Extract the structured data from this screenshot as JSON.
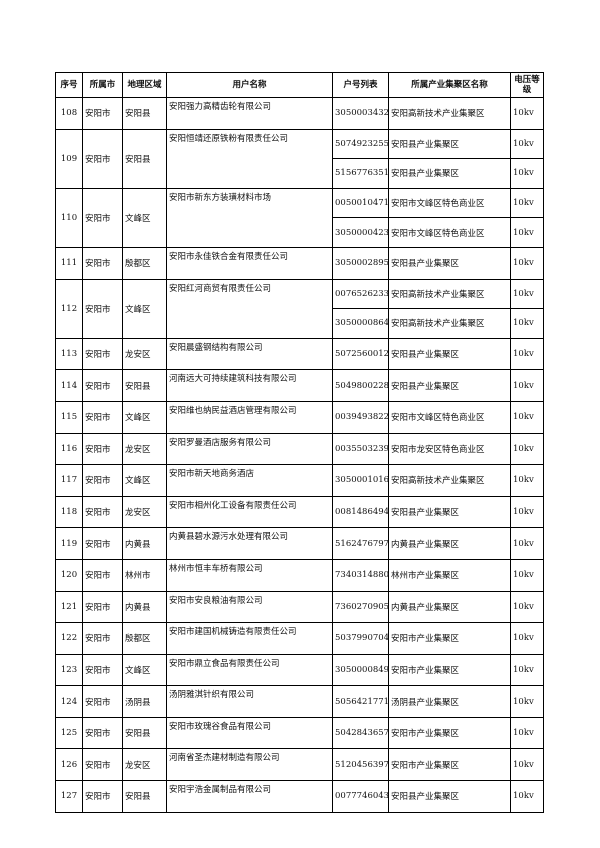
{
  "table": {
    "header": [
      "序号",
      "所属市",
      "地理区域",
      "用户名称",
      "户号列表",
      "所属产业集聚区名称",
      "电压等级"
    ],
    "rows": [
      {
        "id": "108",
        "city": "安阳市",
        "area": "安阳县",
        "user": "安阳强力高精齿轮有限公司",
        "accounts": [
          [
            "3050003432",
            "安阳高新技术产业集聚区",
            "10kv"
          ]
        ]
      },
      {
        "id": "109",
        "city": "安阳市",
        "area": "安阳县",
        "user": "安阳恒靖还原铁粉有限责任公司",
        "accounts": [
          [
            "5074923255",
            "安阳县产业集聚区",
            "10kv"
          ],
          [
            "5156776351",
            "安阳县产业集聚区",
            "10kv"
          ]
        ]
      },
      {
        "id": "110",
        "city": "安阳市",
        "area": "文峰区",
        "user": "安阳市新东方装璜材料市场",
        "accounts": [
          [
            "0050010471",
            "安阳市文峰区特色商业区",
            "10kv"
          ],
          [
            "3050000423",
            "安阳市文峰区特色商业区",
            "10kv"
          ]
        ]
      },
      {
        "id": "111",
        "city": "安阳市",
        "area": "殷都区",
        "user": "安阳市永佳铁合金有限责任公司",
        "accounts": [
          [
            "3050002895",
            "安阳县产业集聚区",
            "10kv"
          ]
        ]
      },
      {
        "id": "112",
        "city": "安阳市",
        "area": "文峰区",
        "user": "安阳红河商贸有限责任公司",
        "accounts": [
          [
            "0076526233",
            "安阳高新技术产业集聚区",
            "10kv"
          ],
          [
            "3050000864",
            "安阳高新技术产业集聚区",
            "10kv"
          ]
        ]
      },
      {
        "id": "113",
        "city": "安阳市",
        "area": "龙安区",
        "user": "安阳晨盛钢结构有限公司",
        "accounts": [
          [
            "5072560012",
            "安阳县产业集聚区",
            "10kv"
          ]
        ]
      },
      {
        "id": "114",
        "city": "安阳市",
        "area": "安阳县",
        "user": "河南远大可持续建筑科技有限公司",
        "accounts": [
          [
            "5049800228",
            "安阳县产业集聚区",
            "10kv"
          ]
        ]
      },
      {
        "id": "115",
        "city": "安阳市",
        "area": "文峰区",
        "user": "安阳维也纳民益酒店管理有限公司",
        "accounts": [
          [
            "0039493822",
            "安阳市文峰区特色商业区",
            "10kv"
          ]
        ]
      },
      {
        "id": "116",
        "city": "安阳市",
        "area": "龙安区",
        "user": "安阳罗曼酒店服务有限公司",
        "accounts": [
          [
            "0035503239",
            "安阳市龙安区特色商业区",
            "10kv"
          ]
        ]
      },
      {
        "id": "117",
        "city": "安阳市",
        "area": "文峰区",
        "user": "安阳市新天地商务酒店",
        "accounts": [
          [
            "3050001016",
            "安阳高新技术产业集聚区",
            "10kv"
          ]
        ]
      },
      {
        "id": "118",
        "city": "安阳市",
        "area": "龙安区",
        "user": "安阳市相州化工设备有限责任公司",
        "accounts": [
          [
            "0081486494",
            "安阳县产业集聚区",
            "10kv"
          ]
        ]
      },
      {
        "id": "119",
        "city": "安阳市",
        "area": "内黄县",
        "user": "内黄县碧水源污水处理有限公司",
        "accounts": [
          [
            "5162476797",
            "内黄县产业集聚区",
            "10kv"
          ]
        ]
      },
      {
        "id": "120",
        "city": "安阳市",
        "area": "林州市",
        "user": "林州市恒丰车桥有限公司",
        "accounts": [
          [
            "7340314880",
            "林州市产业集聚区",
            "10kv"
          ]
        ]
      },
      {
        "id": "121",
        "city": "安阳市",
        "area": "内黄县",
        "user": "安阳市安良粮油有限公司",
        "accounts": [
          [
            "7360270905",
            "内黄县产业集聚区",
            "10kv"
          ]
        ]
      },
      {
        "id": "122",
        "city": "安阳市",
        "area": "殷都区",
        "user": "安阳市建国机械铸造有限责任公司",
        "accounts": [
          [
            "5037990704",
            "安阳市产业集聚区",
            "10kv"
          ]
        ]
      },
      {
        "id": "123",
        "city": "安阳市",
        "area": "文峰区",
        "user": "安阳市鼎立食品有限责任公司",
        "accounts": [
          [
            "3050000849",
            "安阳市产业集聚区",
            "10kv"
          ]
        ]
      },
      {
        "id": "124",
        "city": "安阳市",
        "area": "汤阴县",
        "user": "汤阴雅淇针织有限公司",
        "accounts": [
          [
            "5056421771",
            "汤阴县产业集聚区",
            "10kv"
          ]
        ]
      },
      {
        "id": "125",
        "city": "安阳市",
        "area": "安阳县",
        "user": "安阳市玫瑰谷食品有限公司",
        "accounts": [
          [
            "5042843657",
            "安阳市产业集聚区",
            "10kv"
          ]
        ]
      },
      {
        "id": "126",
        "city": "安阳市",
        "area": "龙安区",
        "user": "河南省圣杰建材制造有限公司",
        "accounts": [
          [
            "5120456397",
            "安阳市产业集聚区",
            "10kv"
          ]
        ]
      },
      {
        "id": "127",
        "city": "安阳市",
        "area": "安阳县",
        "user": "安阳宇浩金属制品有限公司",
        "accounts": [
          [
            "0077746043",
            "安阳县产业集聚区",
            "10kv"
          ]
        ]
      }
    ]
  }
}
